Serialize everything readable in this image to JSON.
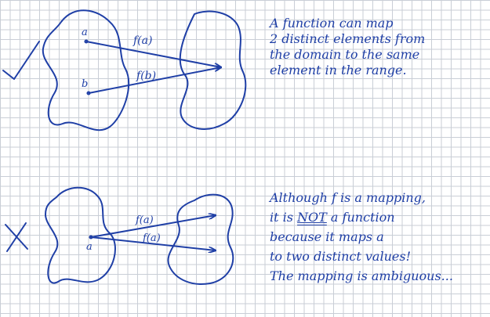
{
  "diagram": {
    "top": {
      "mark": "check-icon",
      "point_a": "a",
      "point_b": "b",
      "label_fa": "f(a)",
      "label_fb": "f(b)",
      "note_lines": [
        "A function can map",
        "2 distinct elements from",
        "the domain to the same",
        "element in the range."
      ]
    },
    "bottom": {
      "mark": "cross-icon",
      "point_a": "a",
      "label_fa_upper": "f(a)",
      "label_fa_lower": "f(a)",
      "note_line1": "Although f is a mapping,",
      "note_line2_pre": "it is ",
      "note_line2_not": "NOT",
      "note_line2_post": " a function",
      "note_line3": "because it maps a",
      "note_line4": "to two distinct values!",
      "note_line5": "The mapping is ambiguous..."
    },
    "ink_color": "#1f3fa6"
  }
}
